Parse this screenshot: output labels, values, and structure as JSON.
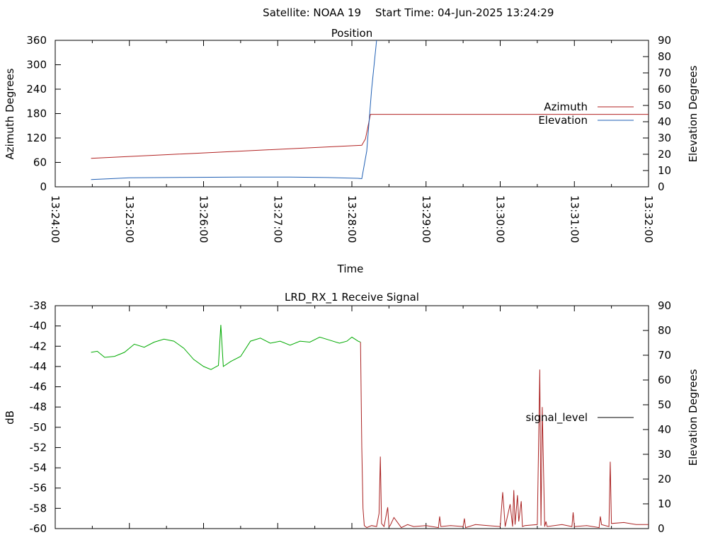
{
  "header": {
    "satellite": "Satellite: NOAA 19",
    "start_time": "Start Time: 04-Jun-2025 13:24:29"
  },
  "chart_data": [
    {
      "type": "line",
      "title": "Position",
      "xlabel": "Time",
      "ylabel": "Azimuth Degrees",
      "y2label": "Elevation Degrees",
      "x_ticks": [
        "13:24:00",
        "13:25:00",
        "13:26:00",
        "13:27:00",
        "13:28:00",
        "13:29:00",
        "13:30:00",
        "13:31:00",
        "13:32:00"
      ],
      "xlim": [
        "13:24:00",
        "13:32:00"
      ],
      "ylim": [
        0,
        360
      ],
      "y_ticks": [
        0,
        60,
        120,
        180,
        240,
        300,
        360
      ],
      "y2lim": [
        0,
        90
      ],
      "y2_ticks": [
        0,
        10,
        20,
        30,
        40,
        50,
        60,
        70,
        80,
        90
      ],
      "legend_position": "right",
      "series": [
        {
          "name": "Azimuth",
          "axis": "left",
          "color": "#b22222",
          "x": [
            "13:24:29",
            "13:28:08",
            "13:28:11",
            "13:28:15",
            "13:32:00"
          ],
          "y": [
            70,
            102,
            118,
            178,
            178
          ]
        },
        {
          "name": "Elevation",
          "axis": "right",
          "color": "#1f5fb4",
          "x": [
            "13:24:29",
            "13:24:45",
            "13:25:00",
            "13:25:40",
            "13:26:30",
            "13:27:10",
            "13:27:40",
            "13:28:05",
            "13:28:08",
            "13:28:12",
            "13:28:16",
            "13:28:20"
          ],
          "y": [
            4.5,
            5,
            5.5,
            5.8,
            6,
            6,
            5.7,
            5.2,
            5,
            22,
            60,
            90
          ]
        }
      ]
    },
    {
      "type": "line",
      "title": "LRD_RX_1 Receive Signal",
      "ylabel": "dB",
      "y2label": "Elevation Degrees",
      "xlim": [
        "13:24:00",
        "13:32:00"
      ],
      "ylim": [
        -60,
        -38
      ],
      "y_ticks": [
        -60,
        -58,
        -56,
        -54,
        -52,
        -50,
        -48,
        -46,
        -44,
        -42,
        -40,
        -38
      ],
      "y2lim": [
        0,
        90
      ],
      "y2_ticks": [
        0,
        10,
        20,
        30,
        40,
        50,
        60,
        70,
        80,
        90
      ],
      "legend_position": "right",
      "legend_entry": "signal_level",
      "series": [
        {
          "name": "signal_level",
          "color": "#000000",
          "segments": [
            {
              "color": "#00aa00",
              "x": [
                "13:24:29",
                "13:24:34",
                "13:24:40",
                "13:24:48",
                "13:24:56",
                "13:25:04",
                "13:25:12",
                "13:25:20",
                "13:25:28",
                "13:25:36",
                "13:25:44",
                "13:25:52",
                "13:26:00",
                "13:26:06",
                "13:26:12",
                "13:26:14",
                "13:26:16",
                "13:26:22",
                "13:26:30",
                "13:26:38",
                "13:26:46",
                "13:26:54",
                "13:27:02",
                "13:27:10",
                "13:27:18",
                "13:27:26",
                "13:27:34",
                "13:27:42",
                "13:27:50",
                "13:27:56",
                "13:28:00",
                "13:28:05",
                "13:28:07"
              ],
              "y": [
                -42.6,
                -42.5,
                -43.1,
                -43.0,
                -42.6,
                -41.8,
                -42.1,
                -41.6,
                -41.3,
                -41.5,
                -42.2,
                -43.3,
                -44.0,
                -44.3,
                -43.9,
                -39.9,
                -44.0,
                -43.5,
                -43.0,
                -41.5,
                -41.2,
                -41.7,
                -41.5,
                -41.9,
                -41.5,
                -41.6,
                -41.1,
                -41.4,
                -41.7,
                -41.5,
                -41.1,
                -41.5,
                -41.6
              ]
            },
            {
              "color": "#aa2222",
              "x": [
                "13:28:07",
                "13:28:08",
                "13:28:09",
                "13:28:10",
                "13:28:12",
                "13:28:16",
                "13:28:20",
                "13:28:22",
                "13:28:23",
                "13:28:24",
                "13:28:26",
                "13:28:29",
                "13:28:30",
                "13:28:31",
                "13:28:34",
                "13:28:40",
                "13:28:45",
                "13:28:50",
                "13:29:00",
                "13:29:10",
                "13:29:11",
                "13:29:12",
                "13:29:20",
                "13:29:30",
                "13:29:31",
                "13:29:32",
                "13:29:40",
                "13:29:50",
                "13:30:00",
                "13:30:02",
                "13:30:03",
                "13:30:04",
                "13:30:08",
                "13:30:10",
                "13:30:11",
                "13:30:12",
                "13:30:14",
                "13:30:15",
                "13:30:17",
                "13:30:18",
                "13:30:20",
                "13:30:30",
                "13:30:32",
                "13:30:33",
                "13:30:34",
                "13:30:36",
                "13:30:37",
                "13:30:38",
                "13:30:50",
                "13:30:58",
                "13:30:59",
                "13:31:00",
                "13:31:10",
                "13:31:20",
                "13:31:21",
                "13:31:22",
                "13:31:28",
                "13:31:29",
                "13:31:30",
                "13:31:40",
                "13:31:50",
                "13:32:00"
              ],
              "y": [
                -41.6,
                -52.0,
                -58.0,
                -59.7,
                -59.9,
                -59.7,
                -59.8,
                -58.5,
                -52.9,
                -59.5,
                -59.8,
                -57.9,
                -59.8,
                -59.7,
                -58.9,
                -59.9,
                -59.6,
                -59.8,
                -59.7,
                -59.9,
                -58.8,
                -59.8,
                -59.7,
                -59.8,
                -59.0,
                -59.9,
                -59.6,
                -59.7,
                -59.8,
                -56.4,
                -58.0,
                -59.8,
                -57.6,
                -59.8,
                -56.2,
                -59.6,
                -56.7,
                -59.3,
                -57.3,
                -59.8,
                -59.7,
                -59.6,
                -44.3,
                -59.7,
                -48.0,
                -59.8,
                -59.3,
                -59.8,
                -59.6,
                -59.8,
                -58.4,
                -59.8,
                -59.7,
                -59.9,
                -58.8,
                -59.6,
                -59.8,
                -53.4,
                -59.5,
                -59.4,
                -59.6,
                -59.6
              ]
            }
          ]
        }
      ]
    }
  ]
}
